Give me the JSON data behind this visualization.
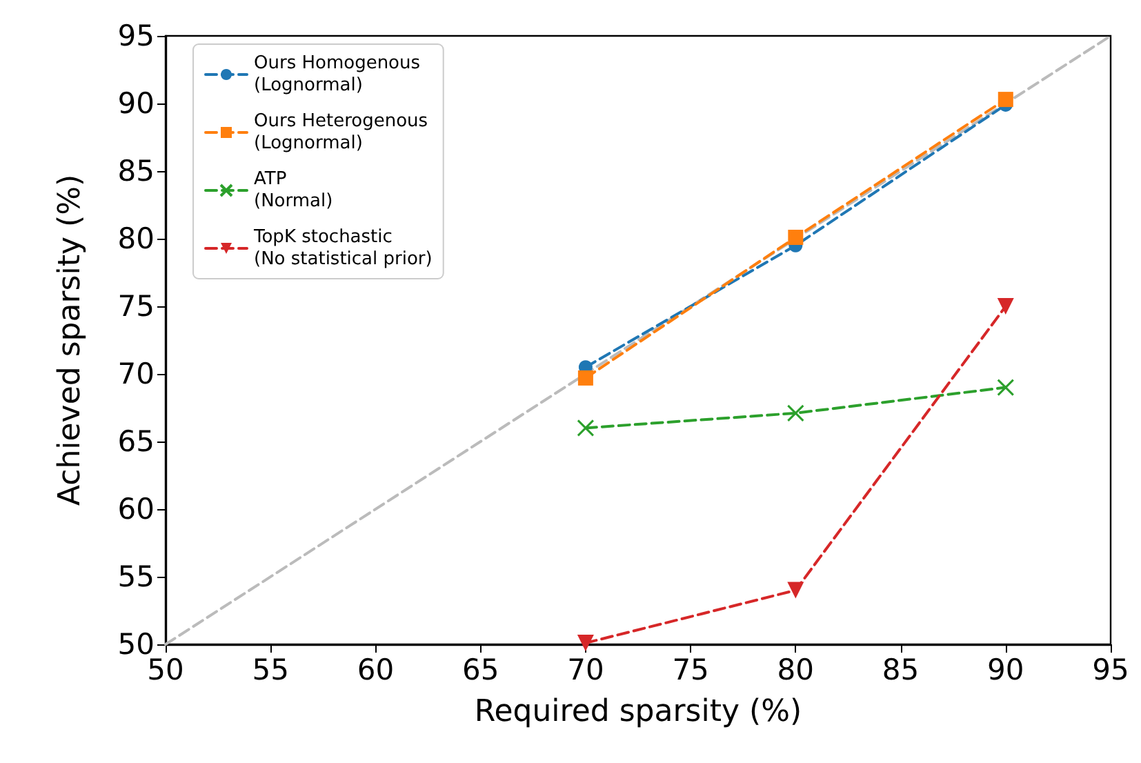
{
  "chart_data": {
    "type": "line",
    "xlabel": "Required sparsity (%)",
    "ylabel": "Achieved sparsity (%)",
    "x": [
      70,
      80,
      90
    ],
    "series": [
      {
        "name": "Ours Homogenous\n(Lognormal)",
        "color": "#1f77b4",
        "marker": "circle",
        "values": [
          70.5,
          79.5,
          89.9
        ]
      },
      {
        "name": "Ours Heterogenous\n(Lognormal)",
        "color": "#ff7f0e",
        "marker": "square",
        "values": [
          69.7,
          80.1,
          90.3
        ]
      },
      {
        "name": "ATP\n(Normal)",
        "color": "#2ca02c",
        "marker": "cross",
        "values": [
          66.0,
          67.1,
          69.0
        ]
      },
      {
        "name": "TopK stochastic\n(No statistical prior)",
        "color": "#d62728",
        "marker": "triangle",
        "values": [
          50.1,
          54.0,
          75.0
        ]
      },
      {
        "color": "#bbbbbb",
        "marker": "none",
        "x": [
          50,
          95
        ],
        "values": [
          50,
          95
        ]
      }
    ],
    "line_style": "dashed",
    "xlim": [
      50,
      95
    ],
    "xticks": [
      50,
      55,
      60,
      65,
      70,
      75,
      80,
      85,
      90,
      95
    ],
    "ylim": [
      50,
      95
    ],
    "yticks": [
      50,
      55,
      60,
      65,
      70,
      75,
      80,
      85,
      90,
      95
    ],
    "grid": false,
    "legend": "top left"
  }
}
